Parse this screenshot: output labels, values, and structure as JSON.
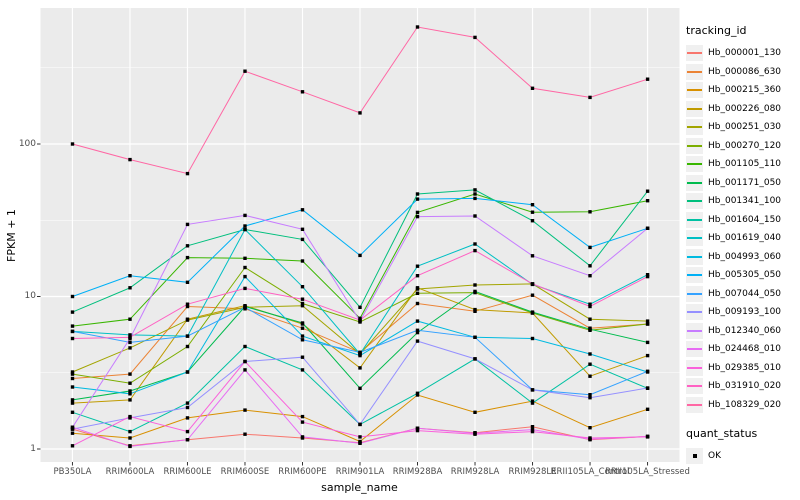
{
  "axes": {
    "x_label": "sample_name",
    "y_label": "FPKM + 1"
  },
  "legend": {
    "tracking_title": "tracking_id",
    "quant_title": "quant_status",
    "quant_items": [
      {
        "label": "OK"
      }
    ]
  },
  "chart_data": {
    "type": "line",
    "y_scale": "log10",
    "ylim": [
      1,
      600
    ],
    "grid": "major-and-minor",
    "legend_position": "right",
    "panel_bg": "#EBEBEB",
    "grid_color": "#FFFFFF",
    "marker": "black-square",
    "categories": [
      "PB350LA",
      "RRIM600LA",
      "RRIM600LE",
      "RRIM600SE",
      "RRIM600PE",
      "RRIM901LA",
      "RRIM928BA",
      "RRIM928LA",
      "RRIM928LE",
      "RRII105LA_Control",
      "RRII105LA_Stressed"
    ],
    "y_ticks": [
      {
        "label": "100",
        "value": 100
      },
      {
        "label": "10",
        "value": 10
      },
      {
        "label": "1",
        "value": 1
      }
    ],
    "y_minor": [
      3.1623,
      31.623,
      316.23
    ],
    "series": [
      {
        "name": "Hb_000001_130",
        "color": "#F8766D",
        "values": [
          1.35,
          1.05,
          1.15,
          1.25,
          1.18,
          1.1,
          1.37,
          1.28,
          1.4,
          1.15,
          1.21
        ]
      },
      {
        "name": "Hb_000086_630",
        "color": "#EB8335",
        "values": [
          2.9,
          3.1,
          8.6,
          8.3,
          6.2,
          4.3,
          9.0,
          8.0,
          10.2,
          6.2,
          6.6
        ]
      },
      {
        "name": "Hb_000215_360",
        "color": "#D89000",
        "values": [
          1.27,
          1.18,
          1.6,
          1.8,
          1.63,
          1.12,
          2.26,
          1.74,
          2.06,
          1.38,
          1.82
        ]
      },
      {
        "name": "Hb_000226_080",
        "color": "#C09B00",
        "values": [
          2.0,
          2.1,
          7.1,
          8.7,
          6.6,
          3.4,
          11.4,
          8.2,
          7.8,
          3.0,
          4.1
        ]
      },
      {
        "name": "Hb_000251_030",
        "color": "#A3A500",
        "values": [
          3.2,
          4.6,
          7.0,
          8.5,
          8.7,
          4.2,
          11.2,
          11.9,
          12.1,
          7.1,
          6.9
        ]
      },
      {
        "name": "Hb_000270_120",
        "color": "#7CAE00",
        "values": [
          3.1,
          2.7,
          4.7,
          15.5,
          9.0,
          6.8,
          10.5,
          10.6,
          7.8,
          6.0,
          6.6
        ]
      },
      {
        "name": "Hb_001105_110",
        "color": "#39B600",
        "values": [
          6.4,
          7.1,
          18.0,
          17.8,
          17.1,
          7.2,
          35.6,
          47.0,
          35.7,
          35.9,
          42.5
        ]
      },
      {
        "name": "Hb_001171_050",
        "color": "#00BB4E",
        "values": [
          2.1,
          2.4,
          3.2,
          8.6,
          6.7,
          2.5,
          5.8,
          10.8,
          7.9,
          6.1,
          5.0
        ]
      },
      {
        "name": "Hb_001341_100",
        "color": "#00BF7D",
        "values": [
          7.9,
          11.4,
          21.5,
          27.5,
          23.7,
          8.5,
          47.0,
          50.0,
          31.4,
          15.9,
          49.0
        ]
      },
      {
        "name": "Hb_001604_150",
        "color": "#00C1A3",
        "values": [
          1.74,
          1.3,
          2.0,
          4.7,
          3.3,
          1.45,
          2.32,
          3.9,
          2.0,
          3.6,
          2.5
        ]
      },
      {
        "name": "Hb_001619_040",
        "color": "#00BFC4",
        "values": [
          5.9,
          5.6,
          5.5,
          27.5,
          11.6,
          4.2,
          15.8,
          22.1,
          12.0,
          8.9,
          13.9
        ]
      },
      {
        "name": "Hb_004993_060",
        "color": "#00BAE0",
        "values": [
          2.55,
          2.3,
          3.2,
          13.5,
          5.5,
          4.1,
          6.9,
          5.4,
          5.3,
          4.2,
          3.2
        ]
      },
      {
        "name": "Hb_005305_050",
        "color": "#00B0F6",
        "values": [
          10.0,
          13.7,
          12.4,
          29.0,
          37.0,
          18.6,
          43.5,
          44.0,
          40.0,
          21.0,
          28.0
        ]
      },
      {
        "name": "Hb_007044_050",
        "color": "#35A2FF",
        "values": [
          5.9,
          5.0,
          5.5,
          8.5,
          5.2,
          4.3,
          6.0,
          5.4,
          2.44,
          2.27,
          3.23
        ]
      },
      {
        "name": "Hb_009193_100",
        "color": "#9590FF",
        "values": [
          1.35,
          1.6,
          1.87,
          3.75,
          4.0,
          1.45,
          5.1,
          3.9,
          2.44,
          2.17,
          2.51
        ]
      },
      {
        "name": "Hb_012340_060",
        "color": "#C77CFF",
        "values": [
          1.39,
          5.3,
          29.7,
          34.0,
          27.6,
          6.9,
          33.4,
          33.7,
          18.5,
          13.7,
          28.0
        ]
      },
      {
        "name": "Hb_024468_010",
        "color": "#E76BF3",
        "values": [
          1.39,
          1.04,
          1.15,
          3.3,
          1.2,
          1.09,
          1.37,
          1.27,
          1.34,
          1.16,
          1.21
        ]
      },
      {
        "name": "Hb_029385_010",
        "color": "#FA62DB",
        "values": [
          1.05,
          1.63,
          1.3,
          3.75,
          1.5,
          1.2,
          1.32,
          1.25,
          1.3,
          1.18,
          1.2
        ]
      },
      {
        "name": "Hb_031910_020",
        "color": "#FF61C3",
        "values": [
          5.3,
          5.4,
          8.9,
          11.3,
          9.6,
          7.0,
          13.7,
          20.0,
          12.1,
          8.6,
          13.5
        ]
      },
      {
        "name": "Hb_108329_020",
        "color": "#FF67A4",
        "values": [
          100,
          79,
          64,
          300,
          220,
          160,
          585,
          500,
          232,
          202,
          266
        ]
      }
    ]
  }
}
